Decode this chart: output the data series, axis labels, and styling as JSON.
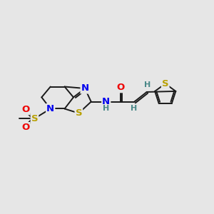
{
  "background_color": "#e6e6e6",
  "bond_color": "#1a1a1a",
  "atom_colors": {
    "N": "#0000ee",
    "S": "#b8a000",
    "O": "#ee0000",
    "H": "#4a8888",
    "C": "#1a1a1a"
  },
  "fig_width": 3.0,
  "fig_height": 3.0,
  "dpi": 100,
  "xlim": [
    0,
    12
  ],
  "ylim": [
    0,
    10
  ]
}
